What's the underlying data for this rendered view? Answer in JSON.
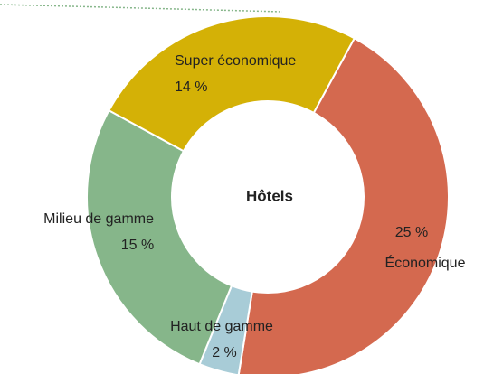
{
  "chart_data": {
    "type": "donut",
    "center_label": "Hôtels",
    "categories": [
      "Économique",
      "Haut de gamme",
      "Milieu de gamme",
      "Super économique"
    ],
    "values": [
      25,
      2,
      15,
      14
    ],
    "value_labels": [
      "25 %",
      "2 %",
      "15 %",
      "14 %"
    ],
    "colors": [
      "#d4694f",
      "#a8ccd7",
      "#86b68a",
      "#d4b106"
    ]
  }
}
